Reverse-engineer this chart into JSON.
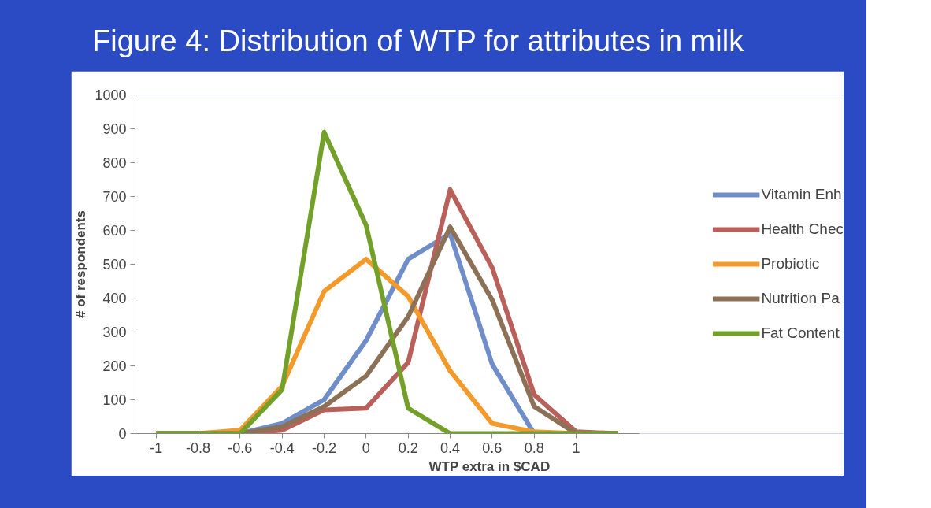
{
  "chart_data": {
    "type": "line",
    "title": "Figure 4: Distribution of WTP for attributes in milk",
    "xlabel": "WTP extra in $CAD",
    "ylabel": "# of respondents",
    "categories": [
      "-1",
      "-0.8",
      "-0.6",
      "-0.4",
      "-0.2",
      "0",
      "0.2",
      "0.4",
      "0.6",
      "0.8",
      "1",
      null
    ],
    "series": [
      {
        "name": "Vitamin Enh",
        "color": "#6f8dc9",
        "values": [
          0,
          0,
          0,
          30,
          100,
          275,
          515,
          590,
          205,
          0,
          0,
          0
        ]
      },
      {
        "name": "Health Chec",
        "color": "#b9605b",
        "values": [
          0,
          0,
          0,
          10,
          70,
          75,
          210,
          720,
          490,
          115,
          5,
          0
        ]
      },
      {
        "name": "Probiotic",
        "color": "#f39a2b",
        "values": [
          0,
          0,
          10,
          140,
          420,
          515,
          405,
          185,
          30,
          5,
          0,
          0
        ]
      },
      {
        "name": "Nutrition Pa",
        "color": "#8c7156",
        "values": [
          0,
          0,
          0,
          20,
          80,
          170,
          345,
          610,
          395,
          80,
          0,
          0
        ]
      },
      {
        "name": "Fat Content",
        "color": "#73a029",
        "values": [
          0,
          0,
          0,
          130,
          890,
          615,
          75,
          0,
          0,
          0,
          0,
          0
        ]
      }
    ],
    "ylim": [
      0,
      1000
    ],
    "yticks": [
      0,
      100,
      200,
      300,
      400,
      500,
      600,
      700,
      800,
      900,
      1000
    ],
    "grid": false,
    "legend": "right",
    "marker": "none",
    "line_style": "solid"
  }
}
